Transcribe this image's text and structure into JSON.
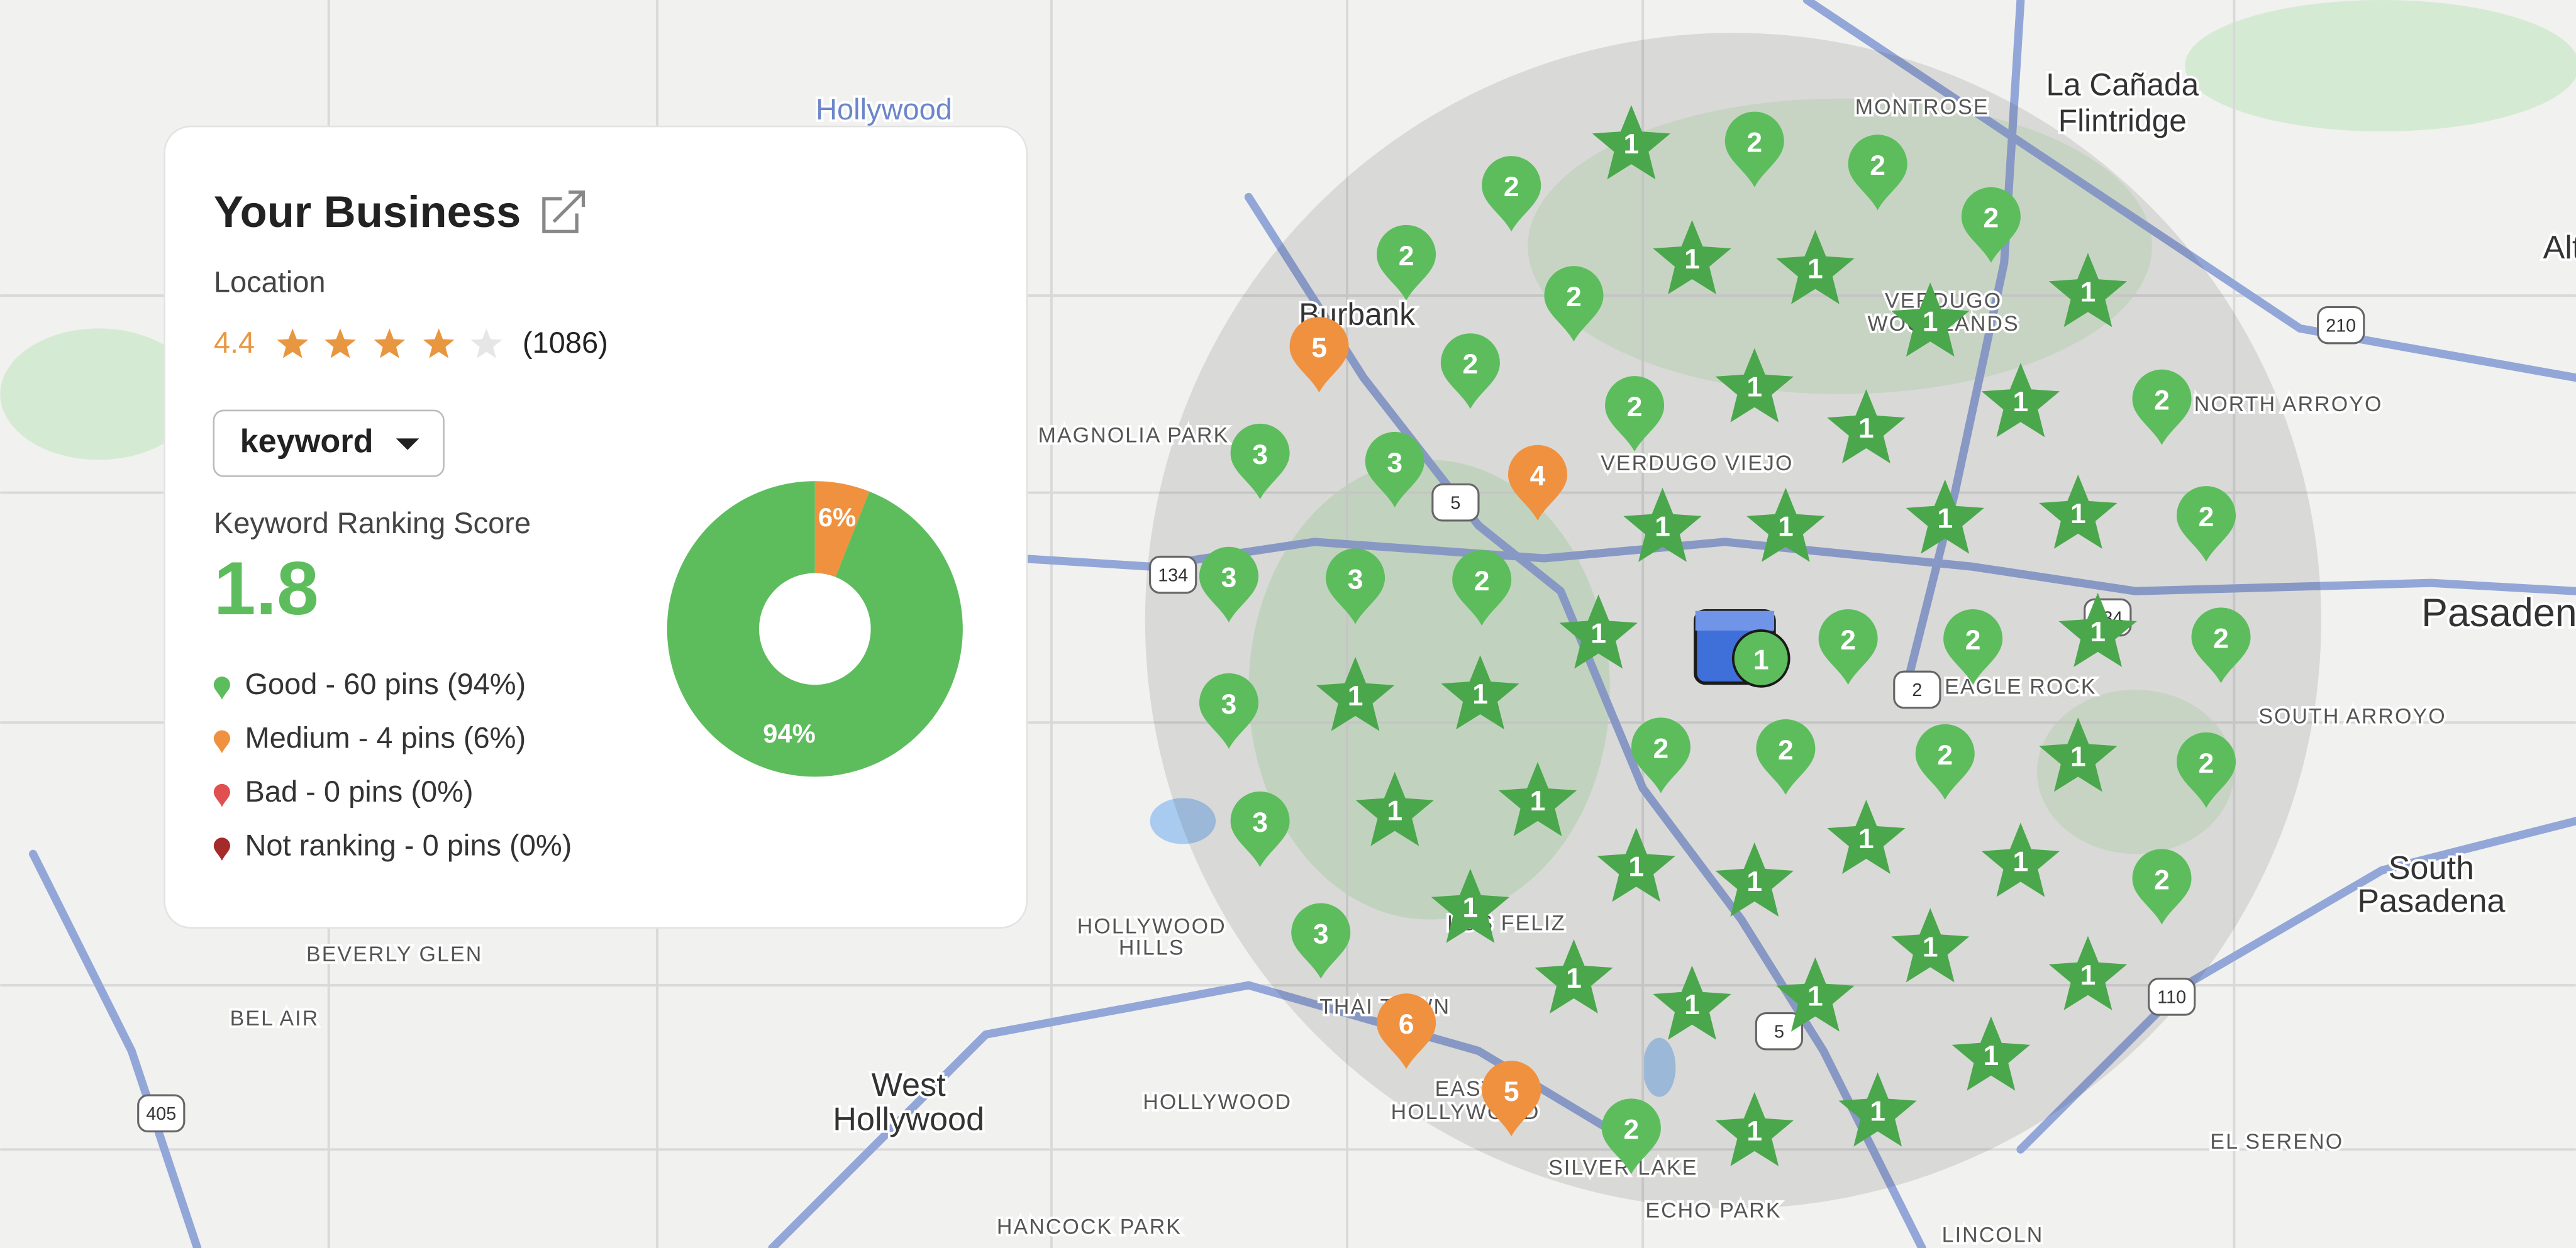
{
  "card": {
    "title": "Your Business",
    "subtitle": "Location",
    "rating": 4.4,
    "reviews": "(1086)",
    "keyword_button": "keyword",
    "score_label": "Keyword Ranking Score",
    "score": 1.8
  },
  "chart_data": {
    "type": "pie",
    "values": [
      94,
      6
    ],
    "value_labels": [
      "94%",
      "6%"
    ],
    "colors": [
      "#5dbd5d",
      "#f0913f"
    ],
    "counterclock": true,
    "legend": [
      "Good - 60 pins (94%)",
      "Medium - 4 pins (6%)",
      "Bad - 0 pins (0%)",
      "Not ranking - 0 pins (0%)"
    ],
    "legend_colors": [
      "#5dbd5d",
      "#f0913f",
      "#e05050",
      "#a52a2a"
    ]
  },
  "map": {
    "labels": [
      "Hollywood",
      "La Cañada",
      "Flintridge",
      "MONTROSE",
      "Burbank",
      "VERDUGO",
      "WOODLANDS",
      "MAGNOLIA PARK",
      "VERDUGO VIEJO",
      "NORTH ARROYO",
      "Pasadena",
      "EAGLE ROCK",
      "SOUTH ARROYO",
      "South",
      "Pasadena",
      "HOLLYWOOD",
      "HILLS",
      "BEVERLY GLEN",
      "BEL AIR",
      "West",
      "Hollywood",
      "HOLLYWOOD",
      "THAI TOWN",
      "EAST",
      "HOLLYWOOD",
      "SILVER LAKE",
      "ECHO PARK",
      "HANCOCK PARK",
      "LINCOLN",
      "EL SERENO",
      "LOS FELIZ",
      "Alt"
    ],
    "shields": [
      "5",
      "134",
      "134",
      "2",
      "210",
      "110",
      "5",
      "405"
    ],
    "pins": [
      1,
      2,
      2,
      2,
      2,
      2,
      1,
      1,
      2,
      1,
      1,
      5,
      2,
      2,
      1,
      1,
      2,
      3,
      3,
      4,
      1,
      1,
      1,
      1,
      1,
      2,
      3,
      3,
      2,
      1,
      2,
      2,
      1,
      2,
      1,
      3,
      1,
      1,
      2,
      2,
      2,
      1,
      2,
      3,
      1,
      1,
      1,
      1,
      1,
      1,
      2,
      3,
      1,
      1,
      1,
      1,
      1,
      1,
      6,
      1,
      5,
      2,
      1,
      1
    ]
  }
}
